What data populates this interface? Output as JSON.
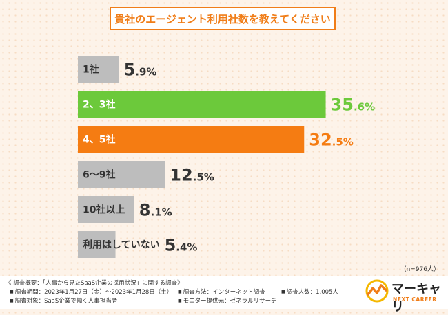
{
  "chart_data": {
    "type": "bar",
    "orientation": "horizontal",
    "title": "貴社のエージェント利用社数を教えてください",
    "categories": [
      "1社",
      "2、3社",
      "4、5社",
      "6〜9社",
      "10社以上",
      "利用はしていない"
    ],
    "values": [
      5.9,
      35.6,
      32.5,
      12.5,
      8.1,
      5.4
    ],
    "value_labels": [
      {
        "int": "5",
        "dec": ".9%"
      },
      {
        "int": "35",
        "dec": ".6%"
      },
      {
        "int": "32",
        "dec": ".5%"
      },
      {
        "int": "12",
        "dec": ".5%"
      },
      {
        "int": "8",
        "dec": ".1%"
      },
      {
        "int": "5",
        "dec": ".4%"
      }
    ],
    "bar_colors": [
      "#bdbdbd",
      "#6cc93b",
      "#f57c12",
      "#bdbdbd",
      "#bdbdbd",
      "#bdbdbd"
    ],
    "value_colors": [
      "#333333",
      "#6cc93b",
      "#f57c12",
      "#333333",
      "#333333",
      "#333333"
    ],
    "category_label_colors": [
      "#333333",
      "#ffffff",
      "#ffffff",
      "#333333",
      "#333333",
      "#333333"
    ],
    "xlim": [
      0,
      40
    ],
    "grid": false,
    "sample_note": "（n=976人）"
  },
  "survey": {
    "heading": "《 調査概要：「人事から見たSaaS企業の採用状況」に関する調査》",
    "period": "調査期間：2023年1月27日（金）〜2023年1月28日（土）",
    "method": "調査方法：インターネット調査",
    "count": "調査人数：1,005人",
    "target": "調査対象：SaaS企業で働く人事担当者",
    "provider": "モニター提供元：ゼネラルリサーチ"
  },
  "logo": {
    "name": "マーキャリ",
    "subtitle": "NEXT CAREER",
    "accent_color": "#f07d18"
  }
}
